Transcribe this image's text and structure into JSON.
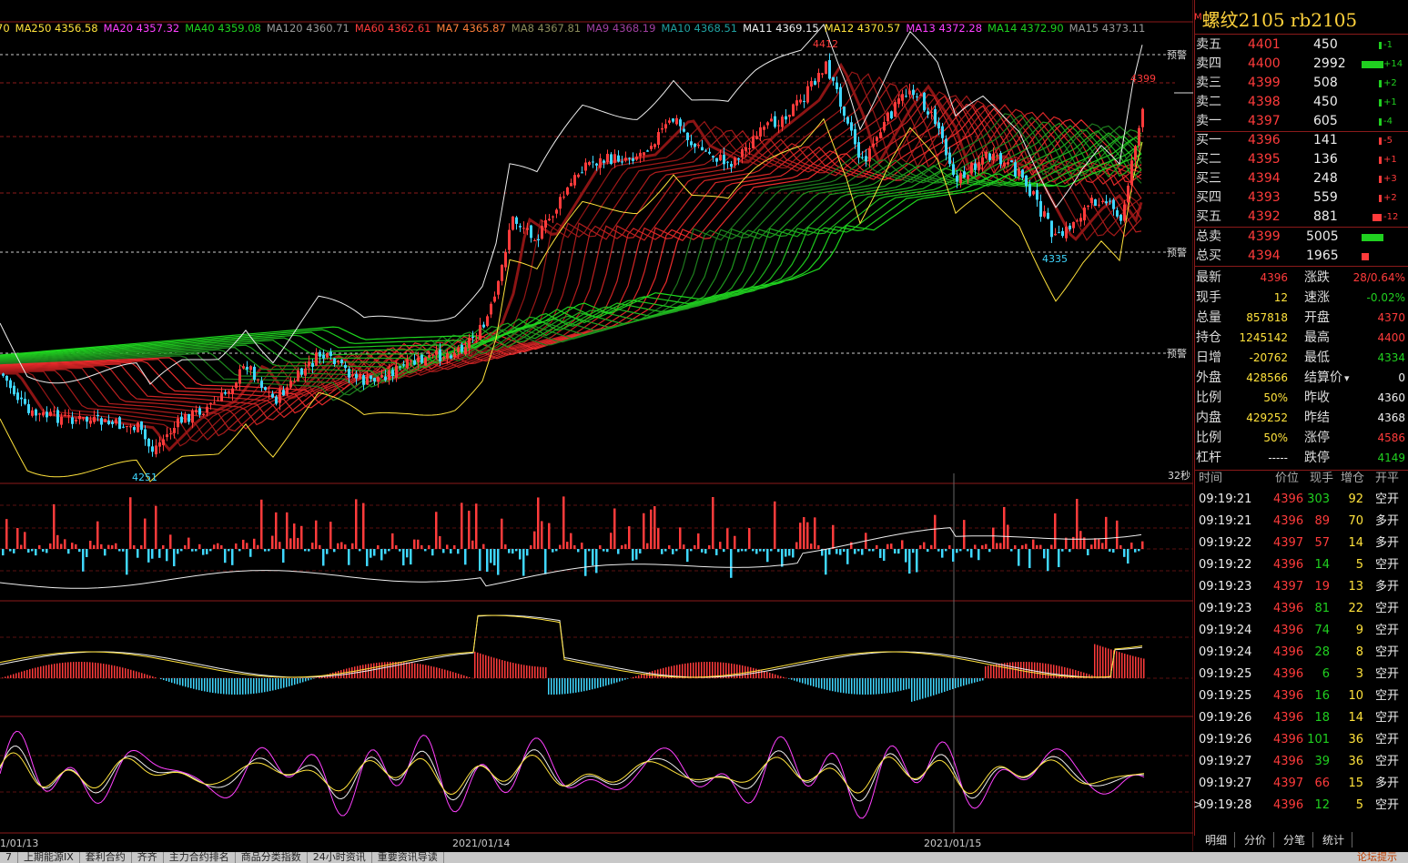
{
  "ma_legend": [
    {
      "label": "MA250 4356.58",
      "color": "#ffe23c"
    },
    {
      "label": "MA20 4357.32",
      "color": "#ff40ff"
    },
    {
      "label": "MA40 4359.08",
      "color": "#20d020"
    },
    {
      "label": "MA120 4360.71",
      "color": "#999999"
    },
    {
      "label": "MA60 4362.61",
      "color": "#ff3b3b"
    },
    {
      "label": "MA7 4365.87",
      "color": "#ff7f3b"
    },
    {
      "label": "MA8 4367.81",
      "color": "#8b8b5b"
    },
    {
      "label": "MA9 4368.19",
      "color": "#a040a0"
    },
    {
      "label": "MA10 4368.51",
      "color": "#20a0a0"
    },
    {
      "label": "MA11 4369.15",
      "color": "#eeeeee"
    },
    {
      "label": "MA12 4370.57",
      "color": "#ffe23c"
    },
    {
      "label": "MA13 4372.28",
      "color": "#ff40ff"
    },
    {
      "label": "MA14 4372.90",
      "color": "#20d020"
    },
    {
      "label": "MA15 4373.11",
      "color": "#999999"
    }
  ],
  "ma_prefix": "70",
  "alarm_label": "预警",
  "price_marks": {
    "high_left": "4412",
    "high_right": "4399",
    "low_mid": "4335",
    "low_left": "4251"
  },
  "countdown": "32秒",
  "dates": [
    "1/01/13",
    "2021/01/14",
    "2021/01/15"
  ],
  "title": "螺纹2105  rb2105",
  "title_mark": "M",
  "order_book": {
    "asks": [
      {
        "label": "卖五",
        "price": "4401",
        "vol": "450",
        "chg": "-1",
        "bar": 0
      },
      {
        "label": "卖四",
        "price": "4400",
        "vol": "2992",
        "chg": "+14",
        "bar": 1
      },
      {
        "label": "卖三",
        "price": "4399",
        "vol": "508",
        "chg": "+2",
        "bar": 0
      },
      {
        "label": "卖二",
        "price": "4398",
        "vol": "450",
        "chg": "+1",
        "bar": 0
      },
      {
        "label": "卖一",
        "price": "4397",
        "vol": "605",
        "chg": "-4",
        "bar": 0
      }
    ],
    "bids": [
      {
        "label": "买一",
        "price": "4396",
        "vol": "141",
        "chg": "-5",
        "bar": 0
      },
      {
        "label": "买二",
        "price": "4395",
        "vol": "136",
        "chg": "+1",
        "bar": 0
      },
      {
        "label": "买三",
        "price": "4394",
        "vol": "248",
        "chg": "+3",
        "bar": 0
      },
      {
        "label": "买四",
        "price": "4393",
        "vol": "559",
        "chg": "+2",
        "bar": 0
      },
      {
        "label": "买五",
        "price": "4392",
        "vol": "881",
        "chg": "-12",
        "bar": 0
      }
    ],
    "total_ask": {
      "label": "总卖",
      "price": "4399",
      "vol": "5005"
    },
    "total_bid": {
      "label": "总买",
      "price": "4394",
      "vol": "1965"
    }
  },
  "stats_left": [
    {
      "label": "最新",
      "value": "4396",
      "cls": "red"
    },
    {
      "label": "现手",
      "value": "12",
      "cls": "yellow"
    },
    {
      "label": "总量",
      "value": "857818",
      "cls": "yellow"
    },
    {
      "label": "持仓",
      "value": "1245142",
      "cls": "yellow"
    },
    {
      "label": "日增",
      "value": "-20762",
      "cls": "yellow"
    },
    {
      "label": "外盘",
      "value": "428566",
      "cls": "yellow"
    },
    {
      "label": "比例",
      "value": "50%",
      "cls": "yellow"
    },
    {
      "label": "内盘",
      "value": "429252",
      "cls": "yellow"
    },
    {
      "label": "比例",
      "value": "50%",
      "cls": "yellow"
    },
    {
      "label": "杠杆",
      "value": "-----",
      "cls": "white"
    }
  ],
  "stats_right": [
    {
      "label": "涨跌",
      "value": "28/0.64%",
      "cls": "red"
    },
    {
      "label": "速涨",
      "value": "-0.02%",
      "cls": "green"
    },
    {
      "label": "开盘",
      "value": "4370",
      "cls": "red"
    },
    {
      "label": "最高",
      "value": "4400",
      "cls": "red"
    },
    {
      "label": "最低",
      "value": "4334",
      "cls": "green"
    },
    {
      "label": "结算价",
      "value": "0",
      "cls": "white"
    },
    {
      "label": "昨收",
      "value": "4360",
      "cls": "white"
    },
    {
      "label": "昨结",
      "value": "4368",
      "cls": "white"
    },
    {
      "label": "涨停",
      "value": "4586",
      "cls": "red"
    },
    {
      "label": "跌停",
      "value": "4149",
      "cls": "green"
    }
  ],
  "tick_header": {
    "time": "时间",
    "price": "价位",
    "vol": "现手",
    "oi": "增仓",
    "type": "开平"
  },
  "ticks": [
    {
      "time": "09:19:21",
      "price": "4396",
      "vol": "303",
      "oi": "92",
      "type": "空开"
    },
    {
      "time": "09:19:21",
      "price": "4396",
      "vol": "89",
      "oi": "70",
      "type": "多开"
    },
    {
      "time": "09:19:22",
      "price": "4397",
      "vol": "57",
      "oi": "14",
      "type": "多开"
    },
    {
      "time": "09:19:22",
      "price": "4396",
      "vol": "14",
      "oi": "5",
      "type": "空开"
    },
    {
      "time": "09:19:23",
      "price": "4397",
      "vol": "19",
      "oi": "13",
      "type": "多开"
    },
    {
      "time": "09:19:23",
      "price": "4396",
      "vol": "81",
      "oi": "22",
      "type": "空开"
    },
    {
      "time": "09:19:24",
      "price": "4396",
      "vol": "74",
      "oi": "9",
      "type": "空开"
    },
    {
      "time": "09:19:24",
      "price": "4396",
      "vol": "28",
      "oi": "8",
      "type": "空开"
    },
    {
      "time": "09:19:25",
      "price": "4396",
      "vol": "6",
      "oi": "3",
      "type": "空开"
    },
    {
      "time": "09:19:25",
      "price": "4396",
      "vol": "16",
      "oi": "10",
      "type": "空开"
    },
    {
      "time": "09:19:26",
      "price": "4396",
      "vol": "18",
      "oi": "14",
      "type": "空开"
    },
    {
      "time": "09:19:26",
      "price": "4396",
      "vol": "101",
      "oi": "36",
      "type": "空开"
    },
    {
      "time": "09:19:27",
      "price": "4396",
      "vol": "39",
      "oi": "36",
      "type": "空开"
    },
    {
      "time": "09:19:27",
      "price": "4397",
      "vol": "66",
      "oi": "15",
      "type": "多开"
    },
    {
      "time": "09:19:28",
      "price": "4396",
      "vol": "12",
      "oi": "5",
      "type": "空开"
    }
  ],
  "right_tabs": [
    "明细",
    "分价",
    "分笔",
    "统计"
  ],
  "bottom_tabs": [
    "7",
    "上期能源IX",
    "套利合约",
    "齐齐",
    "主力合约排名",
    "商品分类指数",
    "24小时资讯",
    "重要资讯导读"
  ],
  "bottom_right": "论坛提示",
  "colors": {
    "up": "#ff3b3b",
    "down": "#3fd7ff",
    "grid": "#8b1a1a"
  }
}
